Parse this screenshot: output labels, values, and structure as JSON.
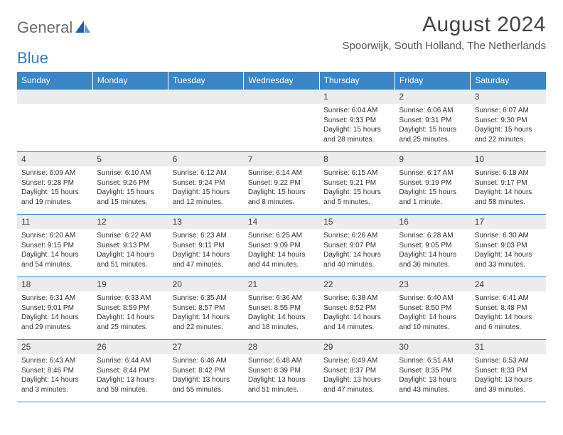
{
  "logo": {
    "word1": "General",
    "word2": "Blue"
  },
  "title": "August 2024",
  "location": "Spoorwijk, South Holland, The Netherlands",
  "colors": {
    "header_bg": "#3b86c7",
    "header_text": "#ffffff",
    "daynum_bg": "#ececec",
    "border": "#3b86c7",
    "body_text": "#333333",
    "logo_gray": "#6b6b6b",
    "logo_blue": "#3b7bbf"
  },
  "weekdays": [
    "Sunday",
    "Monday",
    "Tuesday",
    "Wednesday",
    "Thursday",
    "Friday",
    "Saturday"
  ],
  "weeks": [
    [
      null,
      null,
      null,
      null,
      {
        "n": "1",
        "sunrise": "6:04 AM",
        "sunset": "9:33 PM",
        "daylight": "15 hours and 28 minutes."
      },
      {
        "n": "2",
        "sunrise": "6:06 AM",
        "sunset": "9:31 PM",
        "daylight": "15 hours and 25 minutes."
      },
      {
        "n": "3",
        "sunrise": "6:07 AM",
        "sunset": "9:30 PM",
        "daylight": "15 hours and 22 minutes."
      }
    ],
    [
      {
        "n": "4",
        "sunrise": "6:09 AM",
        "sunset": "9:28 PM",
        "daylight": "15 hours and 19 minutes."
      },
      {
        "n": "5",
        "sunrise": "6:10 AM",
        "sunset": "9:26 PM",
        "daylight": "15 hours and 15 minutes."
      },
      {
        "n": "6",
        "sunrise": "6:12 AM",
        "sunset": "9:24 PM",
        "daylight": "15 hours and 12 minutes."
      },
      {
        "n": "7",
        "sunrise": "6:14 AM",
        "sunset": "9:22 PM",
        "daylight": "15 hours and 8 minutes."
      },
      {
        "n": "8",
        "sunrise": "6:15 AM",
        "sunset": "9:21 PM",
        "daylight": "15 hours and 5 minutes."
      },
      {
        "n": "9",
        "sunrise": "6:17 AM",
        "sunset": "9:19 PM",
        "daylight": "15 hours and 1 minute."
      },
      {
        "n": "10",
        "sunrise": "6:18 AM",
        "sunset": "9:17 PM",
        "daylight": "14 hours and 58 minutes."
      }
    ],
    [
      {
        "n": "11",
        "sunrise": "6:20 AM",
        "sunset": "9:15 PM",
        "daylight": "14 hours and 54 minutes."
      },
      {
        "n": "12",
        "sunrise": "6:22 AM",
        "sunset": "9:13 PM",
        "daylight": "14 hours and 51 minutes."
      },
      {
        "n": "13",
        "sunrise": "6:23 AM",
        "sunset": "9:11 PM",
        "daylight": "14 hours and 47 minutes."
      },
      {
        "n": "14",
        "sunrise": "6:25 AM",
        "sunset": "9:09 PM",
        "daylight": "14 hours and 44 minutes."
      },
      {
        "n": "15",
        "sunrise": "6:26 AM",
        "sunset": "9:07 PM",
        "daylight": "14 hours and 40 minutes."
      },
      {
        "n": "16",
        "sunrise": "6:28 AM",
        "sunset": "9:05 PM",
        "daylight": "14 hours and 36 minutes."
      },
      {
        "n": "17",
        "sunrise": "6:30 AM",
        "sunset": "9:03 PM",
        "daylight": "14 hours and 33 minutes."
      }
    ],
    [
      {
        "n": "18",
        "sunrise": "6:31 AM",
        "sunset": "9:01 PM",
        "daylight": "14 hours and 29 minutes."
      },
      {
        "n": "19",
        "sunrise": "6:33 AM",
        "sunset": "8:59 PM",
        "daylight": "14 hours and 25 minutes."
      },
      {
        "n": "20",
        "sunrise": "6:35 AM",
        "sunset": "8:57 PM",
        "daylight": "14 hours and 22 minutes."
      },
      {
        "n": "21",
        "sunrise": "6:36 AM",
        "sunset": "8:55 PM",
        "daylight": "14 hours and 18 minutes."
      },
      {
        "n": "22",
        "sunrise": "6:38 AM",
        "sunset": "8:52 PM",
        "daylight": "14 hours and 14 minutes."
      },
      {
        "n": "23",
        "sunrise": "6:40 AM",
        "sunset": "8:50 PM",
        "daylight": "14 hours and 10 minutes."
      },
      {
        "n": "24",
        "sunrise": "6:41 AM",
        "sunset": "8:48 PM",
        "daylight": "14 hours and 6 minutes."
      }
    ],
    [
      {
        "n": "25",
        "sunrise": "6:43 AM",
        "sunset": "8:46 PM",
        "daylight": "14 hours and 3 minutes."
      },
      {
        "n": "26",
        "sunrise": "6:44 AM",
        "sunset": "8:44 PM",
        "daylight": "13 hours and 59 minutes."
      },
      {
        "n": "27",
        "sunrise": "6:46 AM",
        "sunset": "8:42 PM",
        "daylight": "13 hours and 55 minutes."
      },
      {
        "n": "28",
        "sunrise": "6:48 AM",
        "sunset": "8:39 PM",
        "daylight": "13 hours and 51 minutes."
      },
      {
        "n": "29",
        "sunrise": "6:49 AM",
        "sunset": "8:37 PM",
        "daylight": "13 hours and 47 minutes."
      },
      {
        "n": "30",
        "sunrise": "6:51 AM",
        "sunset": "8:35 PM",
        "daylight": "13 hours and 43 minutes."
      },
      {
        "n": "31",
        "sunrise": "6:53 AM",
        "sunset": "8:33 PM",
        "daylight": "13 hours and 39 minutes."
      }
    ]
  ],
  "labels": {
    "sunrise": "Sunrise:",
    "sunset": "Sunset:",
    "daylight": "Daylight:"
  }
}
